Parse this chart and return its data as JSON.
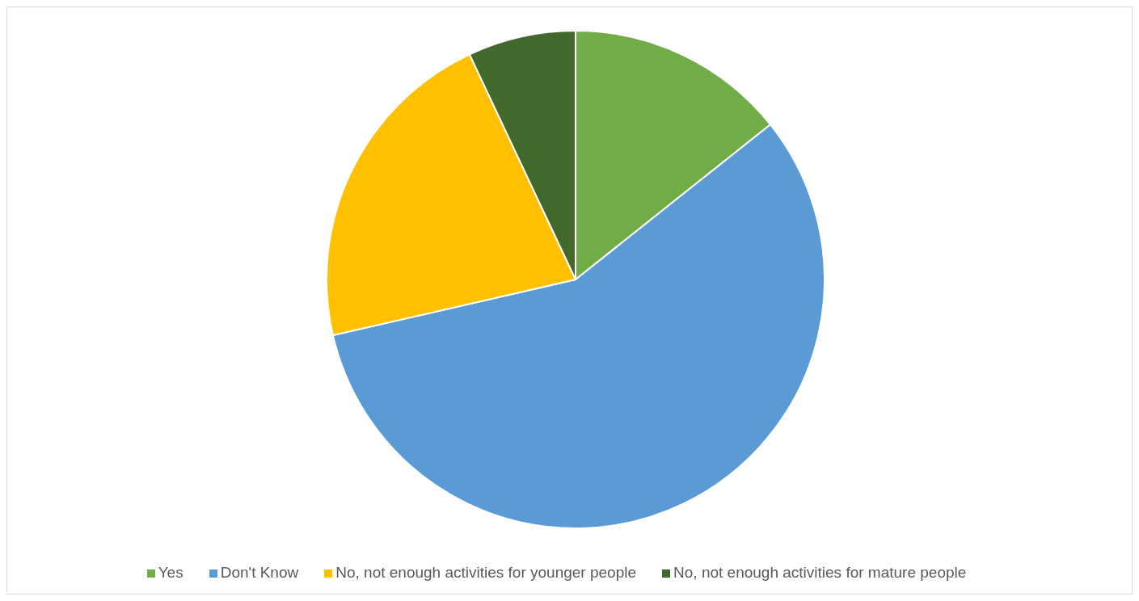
{
  "chart_data": {
    "type": "pie",
    "categories": [
      "Yes",
      "Don't Know",
      "No, not enough activities for younger people",
      "No, not enough activities for mature people"
    ],
    "values": [
      14.3,
      57.1,
      21.6,
      7.0
    ],
    "colors": [
      "#70ad47",
      "#5b9bd5",
      "#ffc000",
      "#43682b"
    ],
    "legend": "bottom"
  }
}
